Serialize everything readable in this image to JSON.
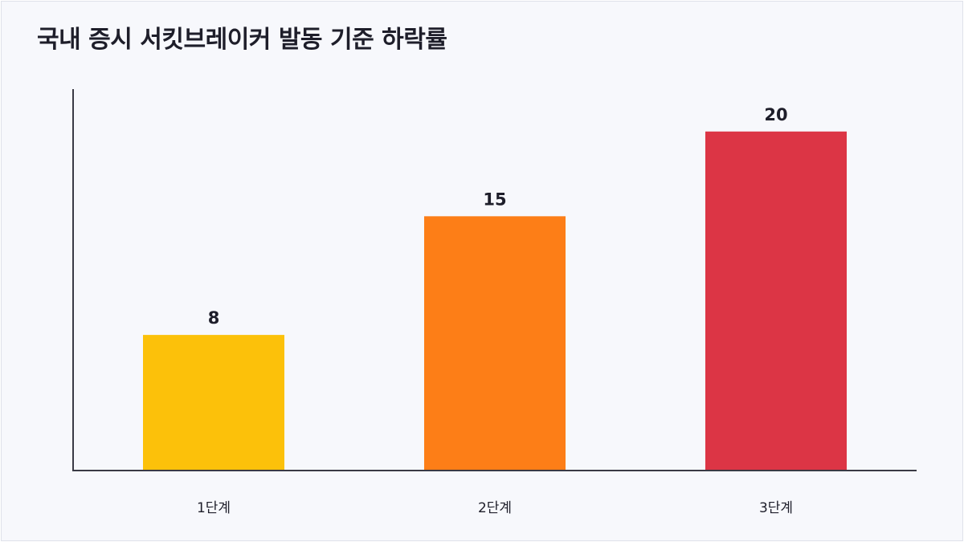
{
  "chart_data": {
    "type": "bar",
    "title": "국내 증시 서킷브레이커 발동 기준 하락률",
    "xlabel": "",
    "ylabel": "",
    "categories": [
      "1단계",
      "2단계",
      "3단계"
    ],
    "values": [
      8,
      15,
      20
    ],
    "colors": [
      "#fcc10a",
      "#fd7e17",
      "#dc3545"
    ],
    "ylim": [
      0,
      22.5
    ],
    "grid": false,
    "legend": "none",
    "data_labels": true
  }
}
